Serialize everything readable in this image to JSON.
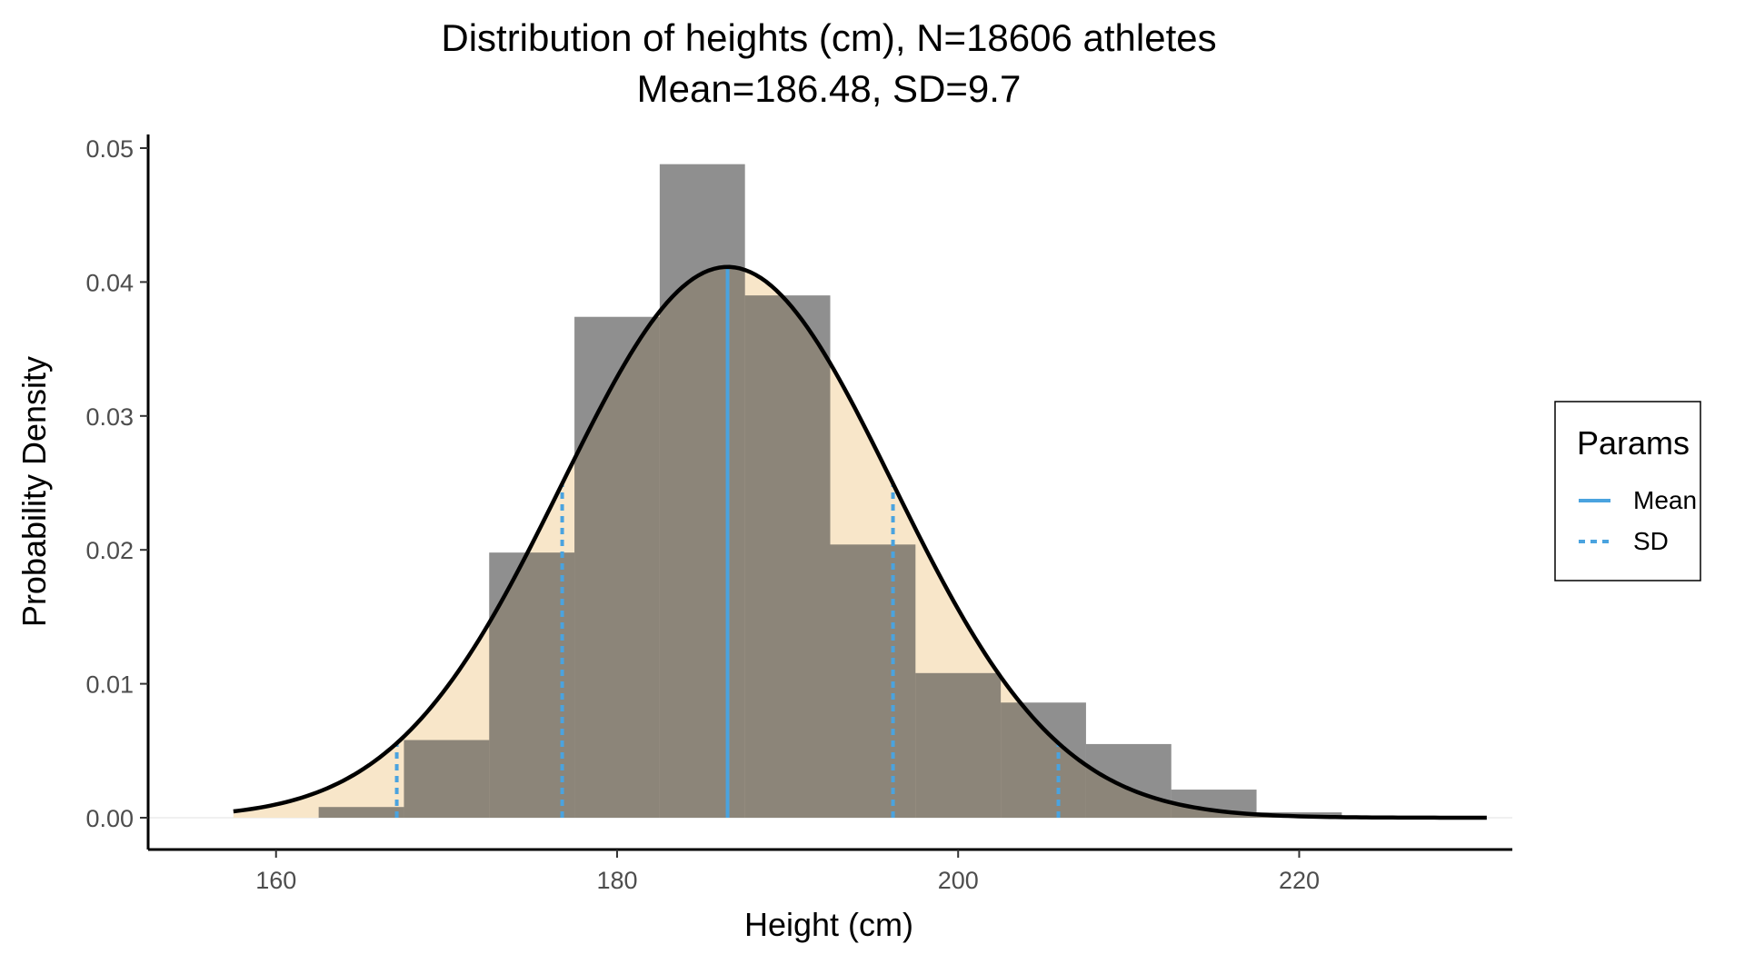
{
  "chart_data": {
    "type": "bar",
    "title": "Distribution of heights (cm), N=18606 athletes",
    "subtitle": "Mean=186.48, SD=9.7",
    "xlabel": "Height (cm)",
    "ylabel": "Probability Density",
    "xlim": [
      152.5,
      232.5
    ],
    "ylim": [
      0,
      0.05
    ],
    "x_ticks": [
      160,
      180,
      200,
      220
    ],
    "y_ticks": [
      0.0,
      0.01,
      0.02,
      0.03,
      0.04,
      0.05
    ],
    "x_tick_labels": [
      "160",
      "180",
      "200",
      "220"
    ],
    "y_tick_labels": [
      "0.00",
      "0.01",
      "0.02",
      "0.03",
      "0.04",
      "0.05"
    ],
    "grid": false,
    "histogram": {
      "bin_width": 5,
      "bin_edges": [
        152.5,
        157.5,
        162.5,
        167.5,
        172.5,
        177.5,
        182.5,
        187.5,
        192.5,
        197.5,
        202.5,
        207.5,
        212.5,
        217.5,
        222.5,
        227.5,
        232.5
      ],
      "values": [
        0.0,
        0.0,
        0.0008,
        0.0058,
        0.0198,
        0.0374,
        0.0488,
        0.039,
        0.0204,
        0.0108,
        0.0086,
        0.0055,
        0.0021,
        0.0004,
        0.0001,
        0.0
      ],
      "color": "#454545"
    },
    "normal_curve": {
      "mean": 186.48,
      "sd": 9.7,
      "x_range": [
        157.5,
        231
      ],
      "line_color": "#000000",
      "fill_color": "#f8e6c9"
    },
    "reference_lines": {
      "mean": {
        "x": 186.48
      },
      "sd": {
        "x": [
          167.08,
          176.78,
          196.18,
          205.88
        ]
      },
      "color": "#4aa3df"
    },
    "legend": {
      "title": "Params",
      "position": "right",
      "items": [
        {
          "label": "Mean",
          "linetype": "solid"
        },
        {
          "label": "SD",
          "linetype": "dashed"
        }
      ]
    }
  }
}
